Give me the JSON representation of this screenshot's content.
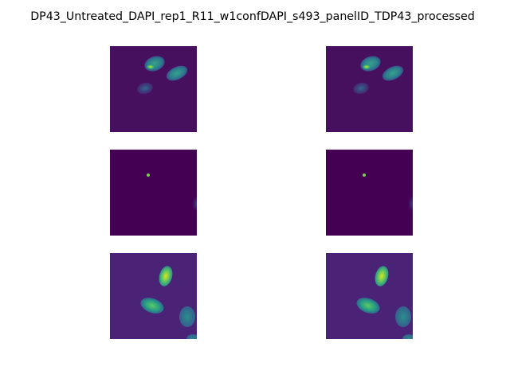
{
  "figure": {
    "title": "DP43_Untreated_DAPI_rep1_R11_w1confDAPI_s493_panelID_TDP43_processed",
    "colormap": "viridis",
    "grid": {
      "rows": 3,
      "cols": 2
    }
  },
  "colors": {
    "viridis_dark": "#440154",
    "viridis_purple": "#46105f",
    "viridis_bg_row3": "#4a2377",
    "viridis_teal": "#2c8c8a",
    "viridis_green": "#3fbc73",
    "viridis_yellow": "#dde318"
  },
  "panels": [
    {
      "row": 1,
      "col": 1,
      "content": "three-nuclei-top"
    },
    {
      "row": 1,
      "col": 2,
      "content": "three-nuclei-top"
    },
    {
      "row": 2,
      "col": 1,
      "content": "single-bright-spot"
    },
    {
      "row": 2,
      "col": 2,
      "content": "single-bright-spot"
    },
    {
      "row": 3,
      "col": 1,
      "content": "four-nuclei-bottom"
    },
    {
      "row": 3,
      "col": 2,
      "content": "four-nuclei-bottom"
    }
  ]
}
